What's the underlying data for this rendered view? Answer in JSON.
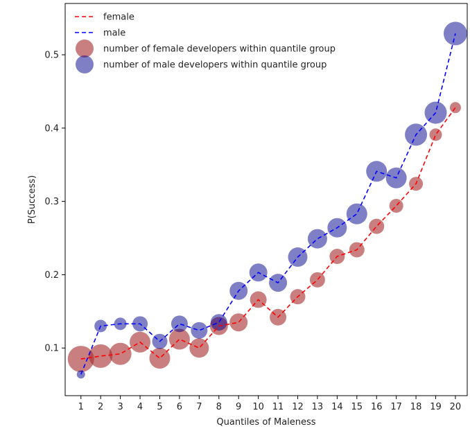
{
  "chart_data": {
    "type": "scatter",
    "title": "",
    "xlabel": "Quantiles of Maleness",
    "ylabel": "P(Success)",
    "x": [
      1,
      2,
      3,
      4,
      5,
      6,
      7,
      8,
      9,
      10,
      11,
      12,
      13,
      14,
      15,
      16,
      17,
      18,
      19,
      20
    ],
    "xlim": [
      0.2,
      20.6
    ],
    "ylim": [
      0.035,
      0.57
    ],
    "yticks": [
      0.1,
      0.2,
      0.3,
      0.4,
      0.5
    ],
    "ytick_labels": [
      "0.1",
      "0.2",
      "0.3",
      "0.4",
      "0.5"
    ],
    "grid": false,
    "legend_position": "upper-left",
    "series": [
      {
        "name": "female",
        "kind": "line",
        "color": "#ff0000",
        "linestyle": "dashed",
        "values": [
          0.085,
          0.089,
          0.092,
          0.108,
          0.086,
          0.112,
          0.1,
          0.13,
          0.135,
          0.166,
          0.142,
          0.17,
          0.193,
          0.225,
          0.234,
          0.266,
          0.294,
          0.324,
          0.391,
          0.428
        ]
      },
      {
        "name": "male",
        "kind": "line",
        "color": "#0000ff",
        "linestyle": "dashed",
        "values": [
          0.064,
          0.13,
          0.133,
          0.133,
          0.109,
          0.133,
          0.124,
          0.135,
          0.178,
          0.203,
          0.189,
          0.224,
          0.249,
          0.264,
          0.283,
          0.341,
          0.332,
          0.391,
          0.421,
          0.529
        ]
      },
      {
        "name": "number of female developers within quantile group",
        "kind": "bubble",
        "color": "#a52a2a",
        "opacity": 0.6,
        "values": [
          0.085,
          0.089,
          0.092,
          0.108,
          0.086,
          0.112,
          0.1,
          0.13,
          0.135,
          0.166,
          0.142,
          0.17,
          0.193,
          0.225,
          0.234,
          0.266,
          0.294,
          0.324,
          0.391,
          0.428
        ],
        "sizes": [
          19,
          17,
          16,
          15,
          15,
          15,
          14,
          13,
          13,
          12,
          12,
          11,
          11,
          11,
          11,
          11,
          10,
          10,
          9,
          8
        ]
      },
      {
        "name": "number of male developers within quantile group",
        "kind": "bubble",
        "color": "#00008b",
        "opacity": 0.5,
        "values": [
          0.064,
          0.13,
          0.133,
          0.133,
          0.109,
          0.133,
          0.124,
          0.135,
          0.178,
          0.203,
          0.189,
          0.224,
          0.249,
          0.264,
          0.283,
          0.341,
          0.332,
          0.391,
          0.421,
          0.529
        ],
        "sizes": [
          6,
          9,
          9,
          11,
          11,
          12,
          12,
          12,
          13,
          13,
          13,
          14,
          14,
          14,
          15,
          15,
          15,
          16,
          16,
          17
        ]
      }
    ]
  }
}
